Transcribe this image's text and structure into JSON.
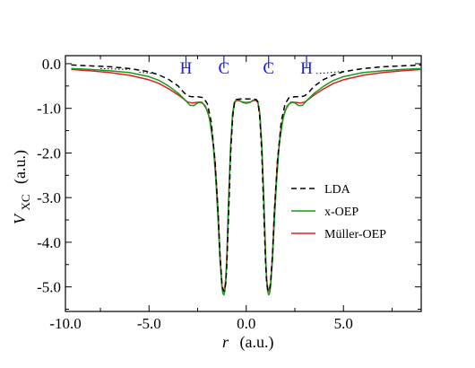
{
  "chart_data": {
    "type": "line",
    "xlabel": {
      "main": "r",
      "unit": "(a.u.)"
    },
    "ylabel": {
      "main": "V",
      "sub": "XC",
      "unit": "(a.u.)"
    },
    "xlim": [
      -9.3,
      9.0
    ],
    "ylim": [
      -5.55,
      0.18
    ],
    "x_ticks": [
      {
        "value": -10.0,
        "label": "-10.0"
      },
      {
        "value": -5.0,
        "label": "-5.0"
      },
      {
        "value": 0.0,
        "label": "0.0"
      },
      {
        "value": 5.0,
        "label": "5.0"
      }
    ],
    "y_ticks": [
      {
        "value": 0.0,
        "label": "0.0"
      },
      {
        "value": -1.0,
        "label": "-1.0"
      },
      {
        "value": -2.0,
        "label": "-2.0"
      },
      {
        "value": -3.0,
        "label": "-3.0"
      },
      {
        "value": -4.0,
        "label": "-4.0"
      },
      {
        "value": -5.0,
        "label": "-5.0"
      }
    ],
    "atoms": [
      {
        "label": "H",
        "x": -3.1
      },
      {
        "label": "C",
        "x": -1.15
      },
      {
        "label": "C",
        "x": 1.15
      },
      {
        "label": "H",
        "x": 3.1
      }
    ],
    "series": [
      {
        "name": "LDA",
        "color": "#000000",
        "dash": "6,4",
        "points": [
          [
            -9.0,
            -0.03
          ],
          [
            -8.0,
            -0.05
          ],
          [
            -7.0,
            -0.07
          ],
          [
            -6.0,
            -0.11
          ],
          [
            -5.0,
            -0.18
          ],
          [
            -4.5,
            -0.25
          ],
          [
            -4.0,
            -0.35
          ],
          [
            -3.5,
            -0.5
          ],
          [
            -3.2,
            -0.65
          ],
          [
            -3.0,
            -0.72
          ],
          [
            -2.8,
            -0.74
          ],
          [
            -2.5,
            -0.74
          ],
          [
            -2.2,
            -0.76
          ],
          [
            -2.0,
            -0.9
          ],
          [
            -1.8,
            -1.3
          ],
          [
            -1.6,
            -2.2
          ],
          [
            -1.45,
            -3.3
          ],
          [
            -1.35,
            -4.3
          ],
          [
            -1.25,
            -4.9
          ],
          [
            -1.2,
            -5.05
          ],
          [
            -1.15,
            -5.1
          ],
          [
            -1.1,
            -5.05
          ],
          [
            -1.05,
            -4.9
          ],
          [
            -1.0,
            -4.5
          ],
          [
            -0.9,
            -3.3
          ],
          [
            -0.8,
            -2.0
          ],
          [
            -0.7,
            -1.2
          ],
          [
            -0.6,
            -0.85
          ],
          [
            -0.5,
            -0.8
          ],
          [
            -0.3,
            -0.79
          ],
          [
            0.0,
            -0.79
          ],
          [
            0.3,
            -0.79
          ],
          [
            0.5,
            -0.8
          ],
          [
            0.6,
            -0.85
          ],
          [
            0.7,
            -1.2
          ],
          [
            0.8,
            -2.0
          ],
          [
            0.9,
            -3.3
          ],
          [
            1.0,
            -4.5
          ],
          [
            1.05,
            -4.9
          ],
          [
            1.1,
            -5.05
          ],
          [
            1.15,
            -5.1
          ],
          [
            1.2,
            -5.05
          ],
          [
            1.25,
            -4.9
          ],
          [
            1.35,
            -4.3
          ],
          [
            1.45,
            -3.3
          ],
          [
            1.6,
            -2.2
          ],
          [
            1.8,
            -1.3
          ],
          [
            2.0,
            -0.9
          ],
          [
            2.2,
            -0.76
          ],
          [
            2.5,
            -0.74
          ],
          [
            2.8,
            -0.74
          ],
          [
            3.0,
            -0.72
          ],
          [
            3.2,
            -0.65
          ],
          [
            3.5,
            -0.5
          ],
          [
            4.0,
            -0.35
          ],
          [
            4.5,
            -0.25
          ],
          [
            5.0,
            -0.18
          ],
          [
            6.0,
            -0.11
          ],
          [
            7.0,
            -0.07
          ],
          [
            8.0,
            -0.05
          ],
          [
            9.0,
            -0.03
          ]
        ]
      },
      {
        "name": "x-OEP",
        "color": "#1a9a1a",
        "dash": "",
        "points": [
          [
            -9.0,
            -0.11
          ],
          [
            -8.0,
            -0.13
          ],
          [
            -7.0,
            -0.16
          ],
          [
            -6.0,
            -0.2
          ],
          [
            -5.0,
            -0.29
          ],
          [
            -4.5,
            -0.37
          ],
          [
            -4.0,
            -0.5
          ],
          [
            -3.5,
            -0.66
          ],
          [
            -3.2,
            -0.79
          ],
          [
            -3.0,
            -0.88
          ],
          [
            -2.9,
            -0.93
          ],
          [
            -2.7,
            -0.94
          ],
          [
            -2.5,
            -0.88
          ],
          [
            -2.3,
            -0.86
          ],
          [
            -2.1,
            -0.95
          ],
          [
            -1.9,
            -1.2
          ],
          [
            -1.7,
            -1.8
          ],
          [
            -1.55,
            -2.7
          ],
          [
            -1.45,
            -3.5
          ],
          [
            -1.35,
            -4.4
          ],
          [
            -1.25,
            -5.0
          ],
          [
            -1.2,
            -5.15
          ],
          [
            -1.15,
            -5.18
          ],
          [
            -1.1,
            -5.1
          ],
          [
            -1.05,
            -4.85
          ],
          [
            -1.0,
            -4.4
          ],
          [
            -0.9,
            -3.0
          ],
          [
            -0.8,
            -1.8
          ],
          [
            -0.7,
            -1.1
          ],
          [
            -0.6,
            -0.86
          ],
          [
            -0.5,
            -0.8
          ],
          [
            -0.35,
            -0.82
          ],
          [
            -0.2,
            -0.87
          ],
          [
            0.0,
            -0.89
          ],
          [
            0.2,
            -0.87
          ],
          [
            0.35,
            -0.82
          ],
          [
            0.5,
            -0.8
          ],
          [
            0.6,
            -0.86
          ],
          [
            0.7,
            -1.1
          ],
          [
            0.8,
            -1.8
          ],
          [
            0.9,
            -3.0
          ],
          [
            1.0,
            -4.4
          ],
          [
            1.05,
            -4.85
          ],
          [
            1.1,
            -5.1
          ],
          [
            1.15,
            -5.18
          ],
          [
            1.2,
            -5.15
          ],
          [
            1.25,
            -5.0
          ],
          [
            1.35,
            -4.4
          ],
          [
            1.45,
            -3.5
          ],
          [
            1.55,
            -2.7
          ],
          [
            1.7,
            -1.8
          ],
          [
            1.9,
            -1.2
          ],
          [
            2.1,
            -0.95
          ],
          [
            2.3,
            -0.86
          ],
          [
            2.5,
            -0.88
          ],
          [
            2.7,
            -0.94
          ],
          [
            2.9,
            -0.93
          ],
          [
            3.0,
            -0.88
          ],
          [
            3.2,
            -0.79
          ],
          [
            3.5,
            -0.66
          ],
          [
            4.0,
            -0.5
          ],
          [
            4.5,
            -0.37
          ],
          [
            5.0,
            -0.29
          ],
          [
            6.0,
            -0.2
          ],
          [
            7.0,
            -0.16
          ],
          [
            8.0,
            -0.13
          ],
          [
            9.0,
            -0.11
          ]
        ]
      },
      {
        "name": "Müller-OEP",
        "color": "#e02020",
        "dash": "",
        "points": [
          [
            -9.0,
            -0.13
          ],
          [
            -8.0,
            -0.16
          ],
          [
            -7.0,
            -0.2
          ],
          [
            -6.0,
            -0.26
          ],
          [
            -5.0,
            -0.36
          ],
          [
            -4.5,
            -0.44
          ],
          [
            -4.0,
            -0.56
          ],
          [
            -3.5,
            -0.7
          ],
          [
            -3.2,
            -0.8
          ],
          [
            -3.0,
            -0.86
          ],
          [
            -2.8,
            -0.88
          ],
          [
            -2.6,
            -0.87
          ],
          [
            -2.4,
            -0.86
          ],
          [
            -2.2,
            -0.9
          ],
          [
            -2.0,
            -1.05
          ],
          [
            -1.8,
            -1.4
          ],
          [
            -1.6,
            -2.2
          ],
          [
            -1.45,
            -3.3
          ],
          [
            -1.35,
            -4.3
          ],
          [
            -1.25,
            -4.95
          ],
          [
            -1.2,
            -5.08
          ],
          [
            -1.15,
            -5.1
          ],
          [
            -1.1,
            -5.0
          ],
          [
            -1.05,
            -4.8
          ],
          [
            -1.0,
            -4.3
          ],
          [
            -0.9,
            -3.0
          ],
          [
            -0.8,
            -1.85
          ],
          [
            -0.7,
            -1.15
          ],
          [
            -0.6,
            -0.88
          ],
          [
            -0.5,
            -0.82
          ],
          [
            -0.35,
            -0.83
          ],
          [
            -0.2,
            -0.86
          ],
          [
            0.0,
            -0.87
          ],
          [
            0.2,
            -0.86
          ],
          [
            0.35,
            -0.83
          ],
          [
            0.5,
            -0.82
          ],
          [
            0.6,
            -0.88
          ],
          [
            0.7,
            -1.15
          ],
          [
            0.8,
            -1.85
          ],
          [
            0.9,
            -3.0
          ],
          [
            1.0,
            -4.3
          ],
          [
            1.05,
            -4.8
          ],
          [
            1.1,
            -5.0
          ],
          [
            1.15,
            -5.1
          ],
          [
            1.2,
            -5.08
          ],
          [
            1.25,
            -4.95
          ],
          [
            1.35,
            -4.3
          ],
          [
            1.45,
            -3.3
          ],
          [
            1.6,
            -2.2
          ],
          [
            1.8,
            -1.4
          ],
          [
            2.0,
            -1.05
          ],
          [
            2.2,
            -0.9
          ],
          [
            2.4,
            -0.86
          ],
          [
            2.6,
            -0.87
          ],
          [
            2.8,
            -0.88
          ],
          [
            3.0,
            -0.86
          ],
          [
            3.2,
            -0.8
          ],
          [
            3.5,
            -0.7
          ],
          [
            4.0,
            -0.56
          ],
          [
            4.5,
            -0.44
          ],
          [
            5.0,
            -0.36
          ],
          [
            6.0,
            -0.26
          ],
          [
            7.0,
            -0.2
          ],
          [
            8.0,
            -0.16
          ],
          [
            9.0,
            -0.13
          ]
        ]
      }
    ],
    "reference_curves": [
      {
        "color": "#000000",
        "dash": "1.5,2.5",
        "points": [
          [
            -5.5,
            -0.19
          ],
          [
            -5.0,
            -0.21
          ],
          [
            -4.7,
            -0.22
          ]
        ]
      },
      {
        "color": "#000000",
        "dash": "1.5,2.5",
        "points": [
          [
            3.6,
            -0.22
          ],
          [
            4.0,
            -0.21
          ],
          [
            5.0,
            -0.17
          ]
        ]
      },
      {
        "color": "#000000",
        "dash": "1.5,2.5",
        "points": [
          [
            -7.5,
            -0.11
          ],
          [
            -6.0,
            -0.13
          ]
        ]
      }
    ],
    "legend": {
      "placement": "right-middle",
      "entries": [
        "LDA",
        "x-OEP",
        "Müller-OEP"
      ]
    }
  }
}
